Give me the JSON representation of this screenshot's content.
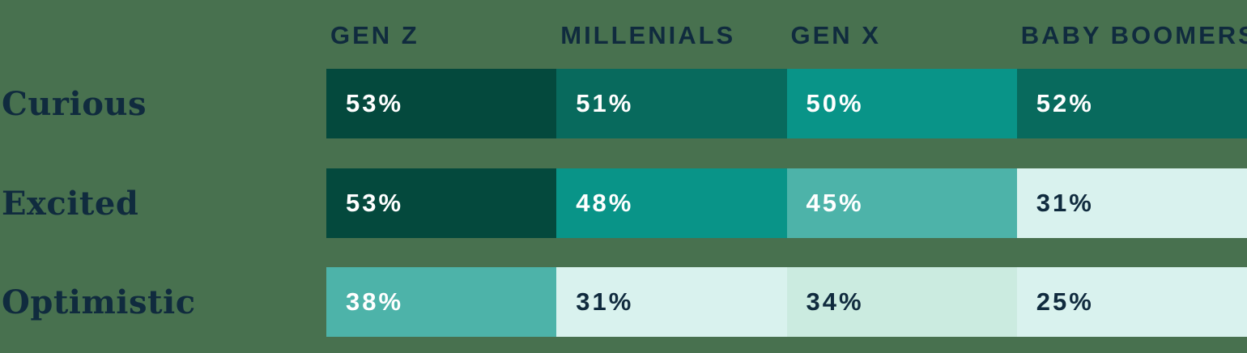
{
  "table": {
    "columns": [
      "GEN Z",
      "MILLENIALS",
      "GEN X",
      "BABY BOOMERS"
    ],
    "rows": [
      {
        "label": "Curious",
        "cells": [
          {
            "value": "53%",
            "bg": "#04493D",
            "fg": "#FFFFFF"
          },
          {
            "value": "51%",
            "bg": "#086A5D",
            "fg": "#FFFFFF"
          },
          {
            "value": "50%",
            "bg": "#099488",
            "fg": "#FFFFFF"
          },
          {
            "value": "52%",
            "bg": "#086A5D",
            "fg": "#FFFFFF"
          }
        ]
      },
      {
        "label": "Excited",
        "cells": [
          {
            "value": "53%",
            "bg": "#04493D",
            "fg": "#FFFFFF"
          },
          {
            "value": "48%",
            "bg": "#099488",
            "fg": "#FFFFFF"
          },
          {
            "value": "45%",
            "bg": "#4DB3A9",
            "fg": "#FFFFFF"
          },
          {
            "value": "31%",
            "bg": "#D9F2EE",
            "fg": "#102B3E"
          }
        ]
      },
      {
        "label": "Optimistic",
        "cells": [
          {
            "value": "38%",
            "bg": "#4DB3A9",
            "fg": "#FFFFFF"
          },
          {
            "value": "31%",
            "bg": "#D9F2EE",
            "fg": "#102B3E"
          },
          {
            "value": "34%",
            "bg": "#CBEBE0",
            "fg": "#102B3E"
          },
          {
            "value": "25%",
            "bg": "#D9F2EE",
            "fg": "#102B3E"
          }
        ]
      }
    ]
  },
  "colors": {
    "background": "#48714F",
    "text_dark": "#102B3E",
    "text_light": "#FFFFFF",
    "scale": [
      "#04493D",
      "#086A5D",
      "#099488",
      "#4DB3A9",
      "#CBEBE0",
      "#D9F2EE"
    ]
  },
  "chart_data": {
    "type": "heatmap",
    "categories": [
      "GEN Z",
      "MILLENIALS",
      "GEN X",
      "BABY BOOMERS"
    ],
    "series": [
      {
        "name": "Curious",
        "values": [
          53,
          51,
          50,
          52
        ]
      },
      {
        "name": "Excited",
        "values": [
          53,
          48,
          45,
          31
        ]
      },
      {
        "name": "Optimistic",
        "values": [
          38,
          31,
          34,
          25
        ]
      }
    ],
    "value_format": "percent",
    "title": "",
    "legend": "none",
    "layout": "rows = sentiments, columns = generations, darker cell = higher value"
  }
}
